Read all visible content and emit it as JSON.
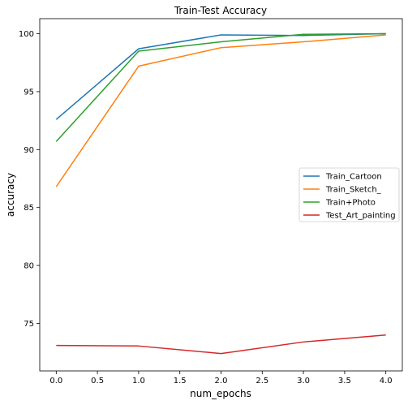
{
  "chart_data": {
    "type": "line",
    "title": "Train-Test Accuracy",
    "xlabel": "num_epochs",
    "ylabel": "accuracy",
    "x": [
      0,
      1,
      2,
      3,
      4
    ],
    "xlim": [
      -0.2,
      4.2
    ],
    "ylim": [
      70.9,
      101.3
    ],
    "xticks": [
      "0.0",
      "0.5",
      "1.0",
      "1.5",
      "2.0",
      "2.5",
      "3.0",
      "3.5",
      "4.0"
    ],
    "yticks": [
      "75",
      "80",
      "85",
      "90",
      "95",
      "100"
    ],
    "grid": false,
    "legend_position": "center-right",
    "series": [
      {
        "name": "Train_Cartoon",
        "color": "#1f77b4",
        "values": [
          92.6,
          98.7,
          99.9,
          99.85,
          100.0
        ]
      },
      {
        "name": "Train_Sketch_",
        "color": "#ff7f0e",
        "values": [
          86.8,
          97.2,
          98.8,
          99.3,
          99.9
        ]
      },
      {
        "name": "Train+Photo",
        "color": "#2ca02c",
        "values": [
          90.7,
          98.5,
          99.3,
          99.95,
          100.0
        ]
      },
      {
        "name": "Test_Art_painting",
        "color": "#d62728",
        "values": [
          73.1,
          73.05,
          72.4,
          73.4,
          74.0
        ]
      }
    ]
  }
}
